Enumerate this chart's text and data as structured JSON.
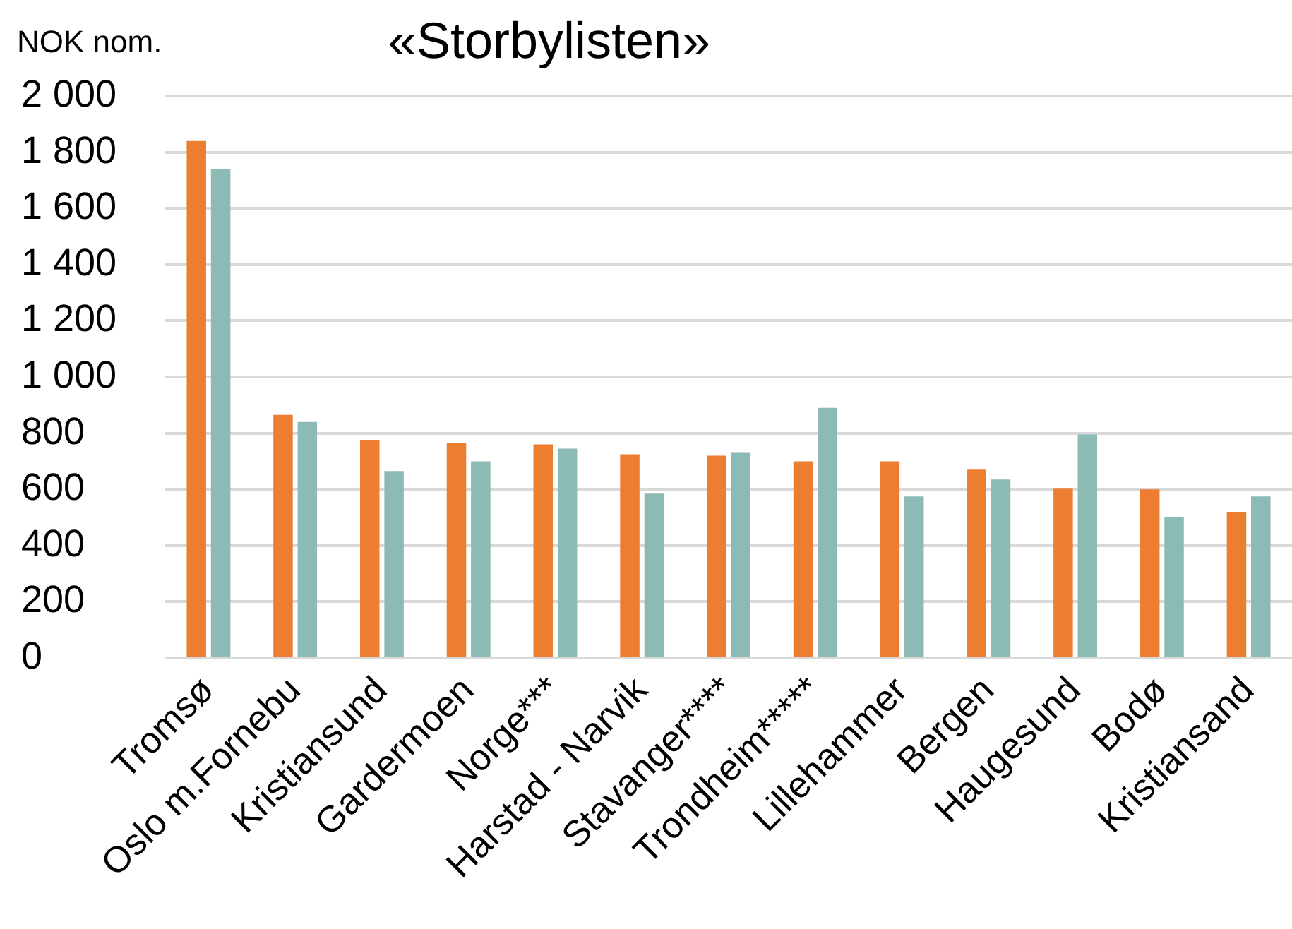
{
  "chart_data": {
    "type": "bar",
    "title": "«Storbylisten»",
    "ylabel": "NOK nom.",
    "categories": [
      "Tromsø",
      "Oslo m.Fornebu",
      "Kristiansund",
      "Gardermoen",
      "Norge***",
      "Harstad - Narvik",
      "Stavanger****",
      "Trondheim*****",
      "Lillehammer",
      "Bergen",
      "Haugesund",
      "Bodø",
      "Kristiansand"
    ],
    "series": [
      {
        "color": "#ed7d31",
        "values": [
          1840,
          865,
          775,
          765,
          760,
          725,
          720,
          700,
          700,
          670,
          605,
          600,
          520
        ]
      },
      {
        "color": "#8cbab4",
        "values": [
          1740,
          840,
          665,
          700,
          745,
          585,
          730,
          890,
          575,
          635,
          795,
          500,
          575
        ]
      }
    ],
    "ylim": [
      0,
      2000
    ],
    "yticks": [
      0,
      200,
      400,
      600,
      800,
      {
        "value": 1000,
        "label": "1 000"
      },
      {
        "value": 1200,
        "label": "1 200"
      },
      {
        "value": 1400,
        "label": "1 400"
      },
      {
        "value": 1600,
        "label": "1 600"
      },
      {
        "value": 1800,
        "label": "1 800"
      },
      {
        "value": 2000,
        "label": "2 000"
      }
    ],
    "grid": "y"
  }
}
